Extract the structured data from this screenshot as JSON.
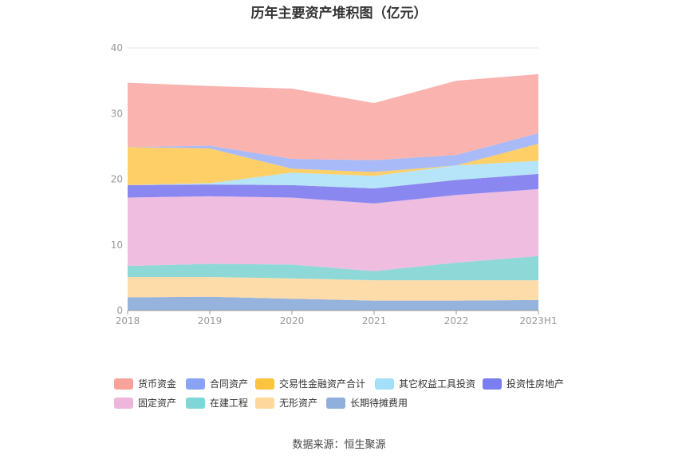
{
  "title": "历年主要资产堆积图（亿元）",
  "source": "数据来源：恒生聚源",
  "chart_data": {
    "type": "area",
    "stacked": true,
    "x": [
      "2018",
      "2019",
      "2020",
      "2021",
      "2022",
      "2023H1"
    ],
    "ylim": [
      0,
      40
    ],
    "yticks": [
      "0",
      "10",
      "20",
      "30",
      "40"
    ],
    "grid": true,
    "legend_position": "bottom",
    "series": [
      {
        "name": "长期待摊费用",
        "color": "#95b3dc",
        "values": [
          2.0,
          2.1,
          1.8,
          1.5,
          1.5,
          1.6
        ]
      },
      {
        "name": "无形资产",
        "color": "#fddcaa",
        "values": [
          3.1,
          3.0,
          3.1,
          3.1,
          3.1,
          3.0
        ]
      },
      {
        "name": "在建工程",
        "color": "#8fd8d8",
        "values": [
          1.7,
          2.0,
          2.1,
          1.4,
          2.7,
          3.7
        ]
      },
      {
        "name": "固定资产",
        "color": "#eebde0",
        "values": [
          10.4,
          10.3,
          10.2,
          10.3,
          10.3,
          10.2
        ]
      },
      {
        "name": "投资性房地产",
        "color": "#8a88f0",
        "values": [
          1.9,
          1.8,
          1.9,
          2.3,
          2.3,
          2.3
        ]
      },
      {
        "name": "其它权益工具投资",
        "color": "#b6e4f9",
        "values": [
          0.0,
          0.2,
          1.9,
          1.9,
          2.2,
          2.0
        ]
      },
      {
        "name": "交易性金融资产合计",
        "color": "#fdcf66",
        "values": [
          5.8,
          5.3,
          0.6,
          0.6,
          0.0,
          2.6
        ]
      },
      {
        "name": "合同资产",
        "color": "#a8baf8",
        "values": [
          0.0,
          0.4,
          1.5,
          1.8,
          1.6,
          1.6
        ]
      },
      {
        "name": "货币资金",
        "color": "#fab3ae",
        "values": [
          9.8,
          9.1,
          10.7,
          8.7,
          11.3,
          9.0
        ]
      }
    ],
    "legend_order": [
      "货币资金",
      "合同资产",
      "交易性金融资产合计",
      "其它权益工具投资",
      "投资性房地产",
      "固定资产",
      "在建工程",
      "无形资产",
      "长期待摊费用"
    ],
    "legend_colors": {
      "货币资金": "#f9a29a",
      "合同资产": "#8aa3f5",
      "交易性金融资产合计": "#fcc33f",
      "其它权益工具投资": "#a4dff8",
      "投资性房地产": "#7b7ef0",
      "固定资产": "#eeb6dc",
      "在建工程": "#7fd6d6",
      "无形资产": "#fdd79b",
      "长期待摊费用": "#8fb0dd"
    }
  }
}
